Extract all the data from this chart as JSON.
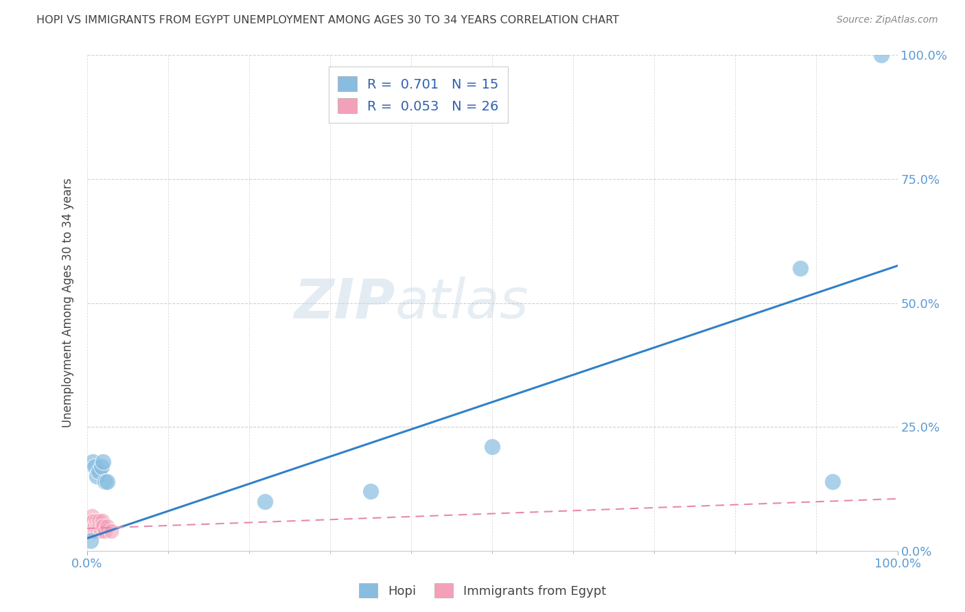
{
  "title": "HOPI VS IMMIGRANTS FROM EGYPT UNEMPLOYMENT AMONG AGES 30 TO 34 YEARS CORRELATION CHART",
  "source": "Source: ZipAtlas.com",
  "ylabel_label": "Unemployment Among Ages 30 to 34 years",
  "watermark_zip": "ZIP",
  "watermark_atlas": "atlas",
  "hopi_scatter": [
    [
      0.005,
      0.02
    ],
    [
      0.007,
      0.18
    ],
    [
      0.01,
      0.17
    ],
    [
      0.012,
      0.15
    ],
    [
      0.015,
      0.16
    ],
    [
      0.018,
      0.17
    ],
    [
      0.02,
      0.18
    ],
    [
      0.022,
      0.14
    ],
    [
      0.025,
      0.14
    ],
    [
      0.22,
      0.1
    ],
    [
      0.35,
      0.12
    ],
    [
      0.5,
      0.21
    ],
    [
      0.88,
      0.57
    ],
    [
      0.92,
      0.14
    ],
    [
      0.98,
      1.0
    ]
  ],
  "egypt_scatter": [
    [
      0.003,
      0.05
    ],
    [
      0.004,
      0.04
    ],
    [
      0.005,
      0.05
    ],
    [
      0.006,
      0.06
    ],
    [
      0.006,
      0.07
    ],
    [
      0.007,
      0.05
    ],
    [
      0.007,
      0.06
    ],
    [
      0.008,
      0.05
    ],
    [
      0.008,
      0.06
    ],
    [
      0.009,
      0.04
    ],
    [
      0.009,
      0.05
    ],
    [
      0.01,
      0.04
    ],
    [
      0.01,
      0.05
    ],
    [
      0.011,
      0.06
    ],
    [
      0.012,
      0.05
    ],
    [
      0.013,
      0.04
    ],
    [
      0.014,
      0.05
    ],
    [
      0.015,
      0.06
    ],
    [
      0.016,
      0.05
    ],
    [
      0.017,
      0.04
    ],
    [
      0.018,
      0.05
    ],
    [
      0.019,
      0.06
    ],
    [
      0.02,
      0.05
    ],
    [
      0.022,
      0.04
    ],
    [
      0.025,
      0.05
    ],
    [
      0.03,
      0.04
    ]
  ],
  "hopi_line": {
    "x0": 0.0,
    "y0": 0.025,
    "x1": 1.0,
    "y1": 0.575
  },
  "egypt_line": {
    "x0": 0.0,
    "y0": 0.045,
    "x1": 1.0,
    "y1": 0.105
  },
  "hopi_color": "#88bde0",
  "egypt_color": "#f4a0b8",
  "hopi_line_color": "#3080c8",
  "egypt_line_color": "#e888a8",
  "background_color": "#ffffff",
  "grid_color": "#cccccc",
  "title_color": "#404040",
  "axis_label_color": "#5b9bd5",
  "xmin": 0.0,
  "xmax": 1.0,
  "ymin": 0.0,
  "ymax": 1.0,
  "xtick_minor_positions": [
    0.1,
    0.2,
    0.3,
    0.4,
    0.5,
    0.6,
    0.7,
    0.8,
    0.9
  ],
  "ytick_positions": [
    0.0,
    0.25,
    0.5,
    0.75,
    1.0
  ]
}
